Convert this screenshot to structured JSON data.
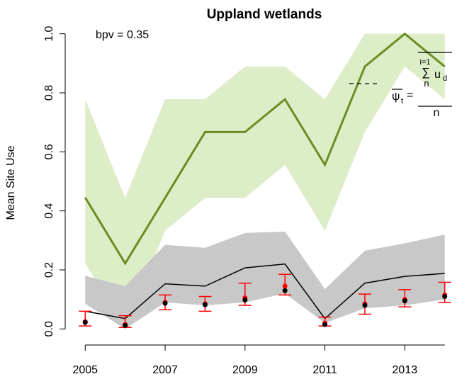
{
  "chart_data": {
    "type": "line",
    "title": "Uppland wetlands",
    "ylabel": "Mean Site Use",
    "annotation": "bpv = 0.35",
    "formula": {
      "lhs": "ψ",
      "lhs_sub": "t",
      "eq": "=",
      "sum_top": "i=1",
      "sum": "∑",
      "sum_bottom": "n",
      "term": "u",
      "term_sub": "d",
      "denominator": "n"
    },
    "x": [
      2005,
      2006,
      2007,
      2008,
      2009,
      2010,
      2011,
      2012,
      2013,
      2014
    ],
    "xlim": [
      2004.64,
      2014.36
    ],
    "xticks": [
      2005,
      2007,
      2009,
      2011,
      2013
    ],
    "ylim": [
      -0.04,
      1.04
    ],
    "yticks": [
      {
        "value": 0,
        "label": "0.0"
      },
      0.2,
      0.4,
      0.6,
      0.8,
      {
        "value": 1,
        "label": "1.0"
      }
    ],
    "bands": [
      {
        "color": "#dcedc8",
        "upper": [
          0.778,
          0.444,
          0.778,
          0.778,
          0.889,
          0.889,
          0.778,
          1.0,
          1.0,
          1.0
        ],
        "lower": [
          0.222,
          0.0,
          0.333,
          0.444,
          0.444,
          0.556,
          0.333,
          0.667,
          0.889,
          0.778
        ]
      },
      {
        "color": "#c8c8c8",
        "upper": [
          0.18,
          0.145,
          0.285,
          0.275,
          0.325,
          0.33,
          0.135,
          0.265,
          0.29,
          0.32
        ],
        "lower": [
          0.085,
          0.0,
          0.09,
          0.08,
          0.09,
          0.12,
          0.02,
          0.07,
          0.08,
          0.1
        ]
      }
    ],
    "series": [
      {
        "color": "#6b8e23",
        "width": 3,
        "values": [
          0.445,
          0.222,
          0.444,
          0.667,
          0.667,
          0.778,
          0.556,
          0.889,
          1.0,
          0.889
        ]
      },
      {
        "color": "#000000",
        "width": 1.5,
        "values": [
          0.06,
          0.035,
          0.153,
          0.145,
          0.207,
          0.22,
          0.035,
          0.155,
          0.178,
          0.188
        ]
      }
    ],
    "errorbars": {
      "color": "#ff0000",
      "values": [
        0.025,
        0.015,
        0.09,
        0.085,
        0.105,
        0.145,
        0.02,
        0.085,
        0.1,
        0.115
      ],
      "lower": [
        0.01,
        0.005,
        0.065,
        0.06,
        0.08,
        0.115,
        0.01,
        0.05,
        0.075,
        0.09
      ],
      "upper": [
        0.06,
        0.045,
        0.115,
        0.11,
        0.155,
        0.185,
        0.04,
        0.118,
        0.133,
        0.158
      ]
    },
    "points": {
      "color": "#000000",
      "values": [
        0.022,
        0.012,
        0.087,
        0.082,
        0.098,
        0.13,
        0.015,
        0.08,
        0.095,
        0.11
      ]
    }
  }
}
